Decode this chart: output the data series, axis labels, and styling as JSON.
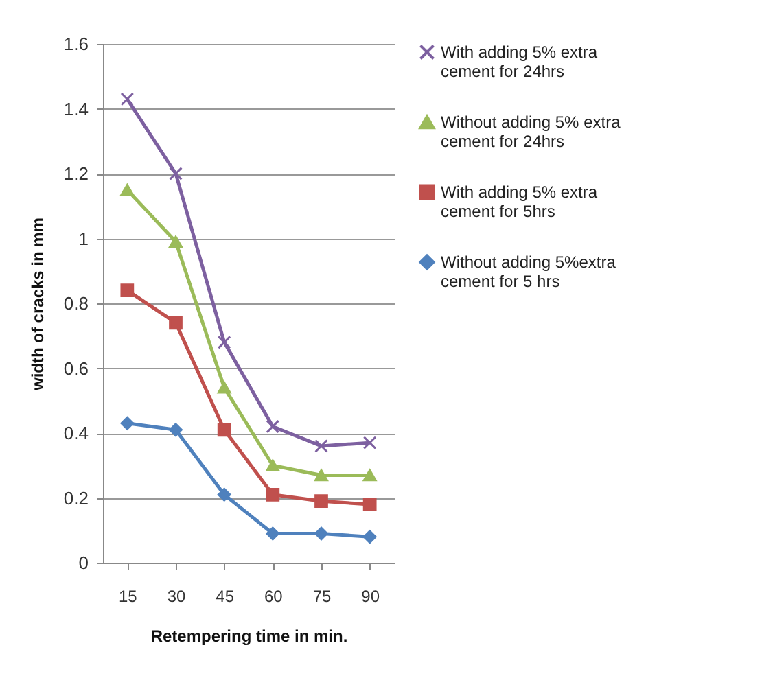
{
  "chart_data": {
    "type": "line",
    "xlabel": "Retempering time in min.",
    "ylabel": "width  of cracks in mm",
    "categories": [
      "15",
      "30",
      "45",
      "60",
      "75",
      "90"
    ],
    "ylim": [
      0,
      1.6
    ],
    "yticks": [
      0,
      0.2,
      0.4,
      0.6,
      0.8,
      1,
      1.2,
      1.4,
      1.6
    ],
    "grid": "y",
    "legend": "right",
    "series": [
      {
        "name": "With adding 5% extra cement for 24hrs",
        "color": "#7d60a0",
        "marker": "cross",
        "values": [
          1.43,
          1.2,
          0.68,
          0.42,
          0.36,
          0.37
        ]
      },
      {
        "name": "Without adding 5% extra cement for 24hrs",
        "color": "#9bbb59",
        "marker": "triangle",
        "values": [
          1.15,
          0.99,
          0.54,
          0.3,
          0.27,
          0.27
        ]
      },
      {
        "name": "With adding 5% extra cement for 5hrs",
        "color": "#c0504d",
        "marker": "square",
        "values": [
          0.84,
          0.74,
          0.41,
          0.21,
          0.19,
          0.18
        ]
      },
      {
        "name": "Without adding 5%extra cement for 5 hrs",
        "color": "#4f81bd",
        "marker": "diamond",
        "values": [
          0.43,
          0.41,
          0.21,
          0.09,
          0.09,
          0.08
        ]
      }
    ]
  }
}
